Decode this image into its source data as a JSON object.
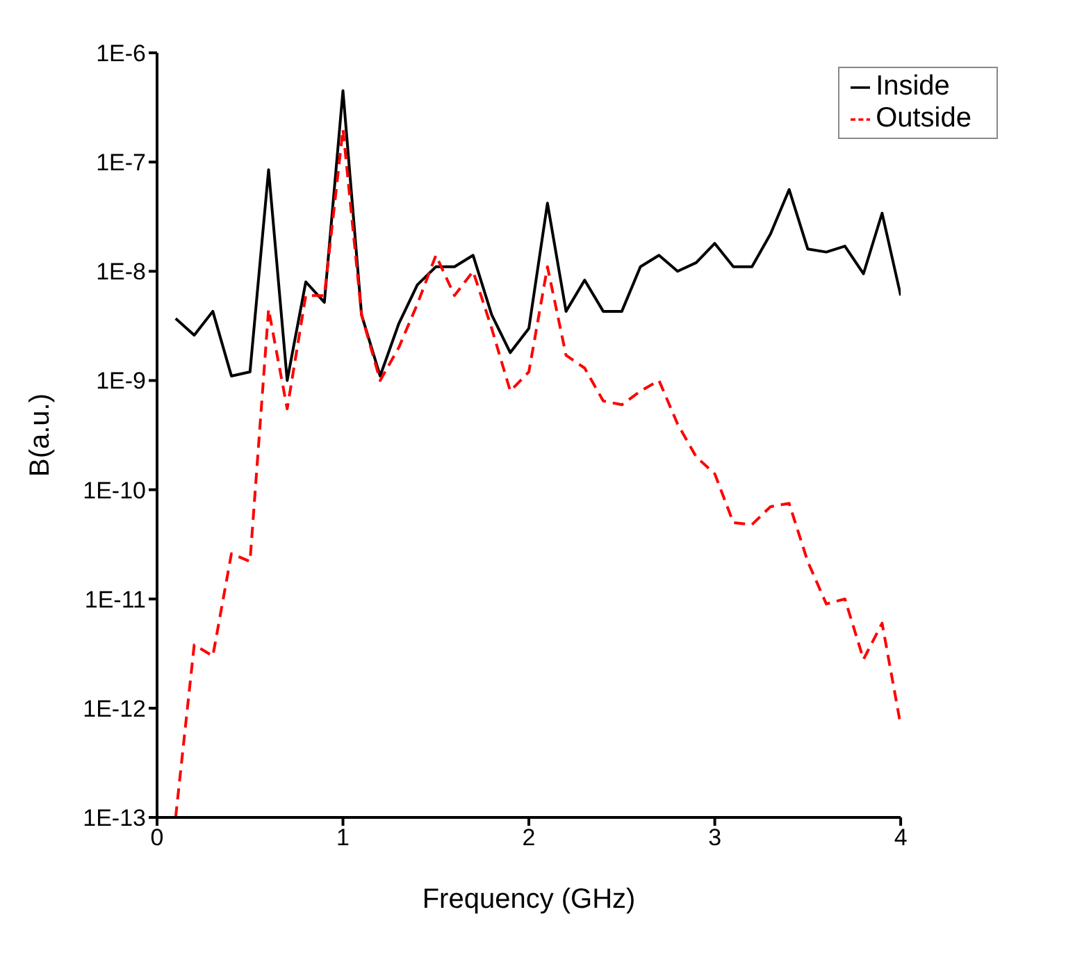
{
  "chart_data": {
    "type": "line",
    "xlabel": "Frequency (GHz)",
    "ylabel": "B(a.u.)",
    "x": [
      0.1,
      0.2,
      0.3,
      0.4,
      0.5,
      0.6,
      0.7,
      0.8,
      0.9,
      1.0,
      1.1,
      1.2,
      1.3,
      1.4,
      1.5,
      1.6,
      1.7,
      1.8,
      1.9,
      2.0,
      2.1,
      2.2,
      2.3,
      2.4,
      2.5,
      2.6,
      2.7,
      2.8,
      2.9,
      3.0,
      3.1,
      3.2,
      3.3,
      3.4,
      3.5,
      3.6,
      3.7,
      3.8,
      3.9,
      4.0
    ],
    "series": [
      {
        "name": "Inside",
        "color": "#000000",
        "line_style": "solid",
        "values": [
          3.7e-09,
          2.6e-09,
          4.3e-09,
          1.1e-09,
          1.2e-09,
          8.5e-08,
          1e-09,
          8e-09,
          5.2e-09,
          4.5e-07,
          4e-09,
          1.1e-09,
          3.3e-09,
          7.5e-09,
          1.1e-08,
          1.1e-08,
          1.4e-08,
          4e-09,
          1.8e-09,
          3e-09,
          4.2e-08,
          4.3e-09,
          8.3e-09,
          4.3e-09,
          4.3e-09,
          1.1e-08,
          1.4e-08,
          1e-08,
          1.2e-08,
          1.8e-08,
          1.1e-08,
          1.1e-08,
          2.2e-08,
          5.6e-08,
          1.6e-08,
          1.5e-08,
          1.7e-08,
          9.5e-09,
          3.4e-08,
          6e-09
        ]
      },
      {
        "name": "Outside",
        "color": "#ff0000",
        "line_style": "dashed",
        "values": [
          1e-13,
          3.8e-12,
          3e-12,
          2.6e-11,
          2.2e-11,
          4.5e-09,
          5.5e-10,
          6e-09,
          6e-09,
          2e-07,
          4e-09,
          1e-09,
          2e-09,
          5e-09,
          1.4e-08,
          6e-09,
          1e-08,
          3e-09,
          8e-10,
          1.2e-09,
          1.1e-08,
          1.7e-09,
          1.3e-09,
          6.5e-10,
          6e-10,
          8e-10,
          1e-09,
          4e-10,
          2e-10,
          1.4e-10,
          5e-11,
          4.8e-11,
          7e-11,
          7.5e-11,
          2.2e-11,
          9e-12,
          1e-11,
          2.8e-12,
          6e-12,
          7e-13
        ]
      }
    ],
    "xlim": [
      0,
      4
    ],
    "xticks": [
      0,
      1,
      2,
      3,
      4
    ],
    "ylim": [
      1e-13,
      1e-06
    ],
    "yticks": [
      {
        "value": 1e-13,
        "label": "1E-13"
      },
      {
        "value": 1e-12,
        "label": "1E-12"
      },
      {
        "value": 1e-11,
        "label": "1E-11"
      },
      {
        "value": 1e-10,
        "label": "1E-10"
      },
      {
        "value": 1e-09,
        "label": "1E-9"
      },
      {
        "value": 1e-08,
        "label": "1E-8"
      },
      {
        "value": 1e-07,
        "label": "1E-7"
      },
      {
        "value": 1e-06,
        "label": "1E-6"
      }
    ],
    "log": "y",
    "grid": false,
    "legend": "top right",
    "marker": "none"
  }
}
